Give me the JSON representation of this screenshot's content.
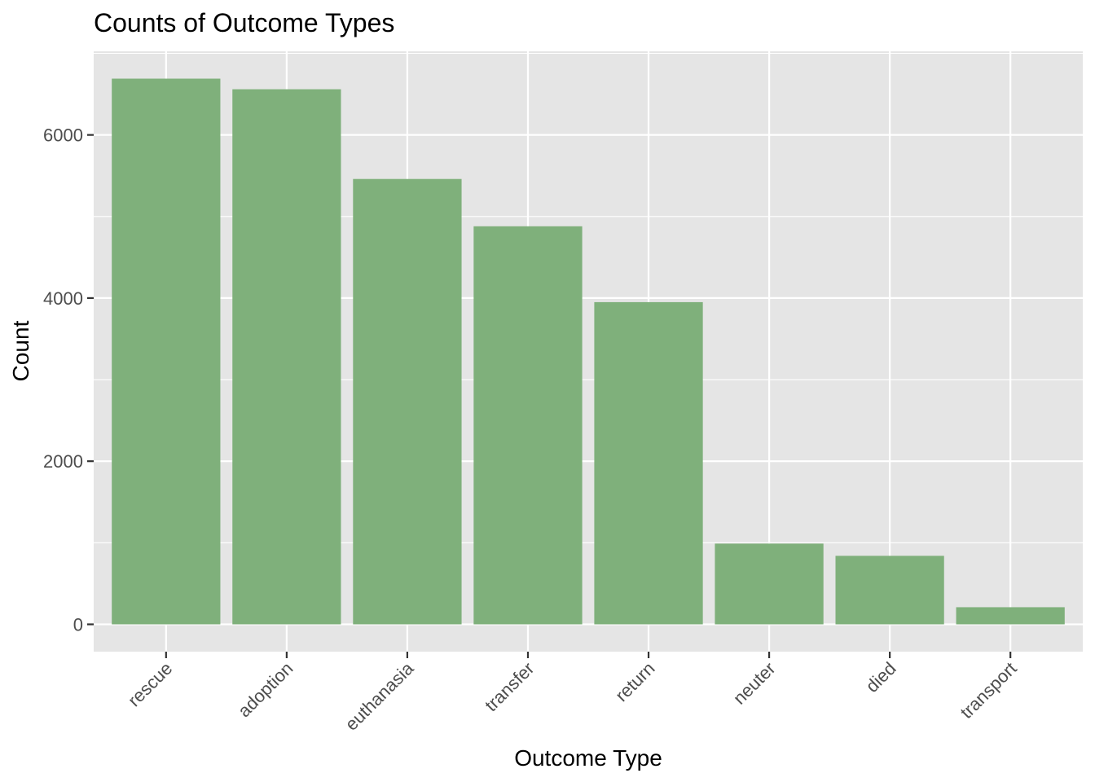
{
  "chart_data": {
    "type": "bar",
    "title": "Counts of Outcome Types",
    "xlabel": "Outcome Type",
    "ylabel": "Count",
    "categories": [
      "rescue",
      "adoption",
      "euthanasia",
      "transfer",
      "return",
      "neuter",
      "died",
      "transport"
    ],
    "values": [
      6690,
      6560,
      5460,
      4880,
      3950,
      990,
      840,
      210
    ],
    "ylim": [
      -335,
      7025
    ],
    "yticks": [
      0,
      2000,
      4000,
      6000
    ],
    "ytick_labels": [
      "0",
      "2000",
      "4000",
      "6000"
    ],
    "grid": true,
    "legend": "none",
    "colors": {
      "bar": "#7fb07b",
      "panel_background": "#e5e5e5",
      "grid": "#ffffff",
      "tick_text": "#4d4d4d",
      "tick_mark": "#333333"
    }
  }
}
